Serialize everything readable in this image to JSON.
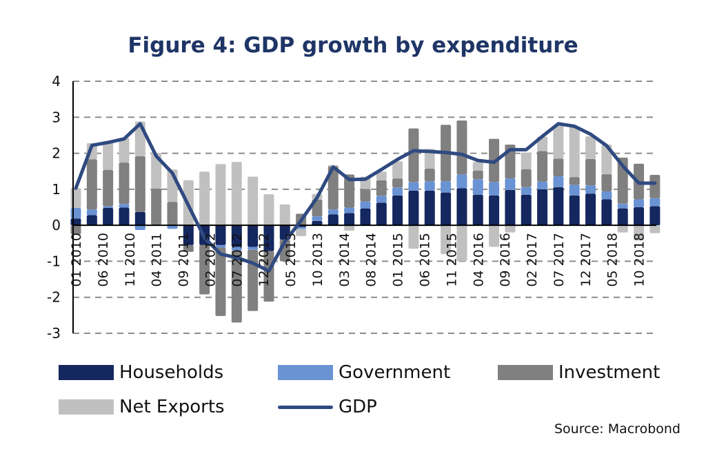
{
  "chart_data": {
    "type": "bar",
    "stacked": true,
    "title": "Figure 4: GDP growth by expenditure",
    "source": "Source: Macrobond",
    "xlabel": "",
    "ylabel": "",
    "ylim": [
      -3,
      4
    ],
    "yticks": [
      "4",
      "3",
      "2",
      "1",
      "0",
      "-1",
      "-2",
      "-3"
    ],
    "grid": true,
    "legend_placement": "bottom",
    "xtick_labels": [
      "01 2010",
      "06 2010",
      "11 2010",
      "04 2011",
      "09 2011",
      "02 2012",
      "07 2012",
      "12 2012",
      "05 2013",
      "10 2013",
      "03 2014",
      "08 2014",
      "01 2015",
      "06 2015",
      "11 2015",
      "04 2016",
      "09 2016",
      "02 2017",
      "07 2017",
      "12 2017",
      "05 2018",
      "10 2018"
    ],
    "x": [
      "01 2010",
      "04 2010",
      "07 2010",
      "10 2010",
      "01 2011",
      "04 2011",
      "07 2011",
      "10 2011",
      "01 2012",
      "04 2012",
      "07 2012",
      "10 2012",
      "01 2013",
      "04 2013",
      "07 2013",
      "10 2013",
      "01 2014",
      "04 2014",
      "07 2014",
      "10 2014",
      "01 2015",
      "04 2015",
      "07 2015",
      "10 2015",
      "01 2016",
      "04 2016",
      "07 2016",
      "10 2016",
      "01 2017",
      "04 2017",
      "07 2017",
      "10 2017",
      "01 2018",
      "04 2018",
      "07 2018",
      "10 2018",
      "01 2019"
    ],
    "series": [
      {
        "name": "Households",
        "type": "bar",
        "color": "#14275f",
        "values": [
          0.19,
          0.28,
          0.48,
          0.49,
          0.37,
          0.02,
          0.0,
          -0.55,
          -0.55,
          -0.55,
          -0.6,
          -0.6,
          -0.72,
          -0.4,
          -0.05,
          0.12,
          0.3,
          0.34,
          0.47,
          0.63,
          0.83,
          0.96,
          0.96,
          0.91,
          1.03,
          0.85,
          0.83,
          0.98,
          0.85,
          1.0,
          1.06,
          0.83,
          0.88,
          0.72,
          0.47,
          0.5,
          0.53
        ]
      },
      {
        "name": "Government",
        "type": "bar",
        "color": "#6a93d4",
        "values": [
          0.29,
          0.16,
          0.05,
          0.1,
          -0.13,
          0.0,
          -0.1,
          0.0,
          0.0,
          -0.07,
          -0.1,
          -0.08,
          0.0,
          0.0,
          -0.05,
          0.13,
          0.14,
          0.15,
          0.19,
          0.19,
          0.22,
          0.24,
          0.26,
          0.31,
          0.38,
          0.43,
          0.37,
          0.32,
          0.21,
          0.21,
          0.3,
          0.29,
          0.23,
          0.22,
          0.13,
          0.22,
          0.22
        ]
      },
      {
        "name": "Investment",
        "type": "bar",
        "color": "#808080",
        "values": [
          -0.25,
          1.39,
          1.01,
          1.15,
          1.55,
          1.0,
          0.65,
          -0.19,
          -1.37,
          -1.9,
          -2.0,
          -1.7,
          -1.4,
          -0.6,
          0.32,
          0.46,
          1.2,
          0.92,
          0.35,
          0.43,
          0.25,
          1.49,
          0.35,
          1.57,
          1.5,
          0.24,
          1.2,
          0.94,
          0.5,
          0.85,
          0.49,
          0.22,
          0.73,
          0.48,
          1.28,
          0.99,
          0.65
        ]
      },
      {
        "name": "Net Exports",
        "type": "bar",
        "color": "#c0c0c0",
        "values": [
          0.55,
          0.45,
          0.77,
          0.69,
          0.96,
          0.99,
          0.9,
          1.25,
          1.49,
          1.7,
          1.76,
          1.35,
          0.86,
          0.58,
          -0.2,
          0.16,
          0.03,
          -0.15,
          0.34,
          0.24,
          0.48,
          -0.65,
          0.55,
          -0.8,
          -1.0,
          0.24,
          -0.6,
          -0.2,
          0.46,
          0.4,
          0.93,
          1.38,
          0.63,
          0.82,
          -0.2,
          -0.42,
          -0.22
        ]
      },
      {
        "name": "GDP",
        "type": "line",
        "color": "#2f4a80",
        "values": [
          1.03,
          2.22,
          2.3,
          2.4,
          2.82,
          1.92,
          1.45,
          0.55,
          -0.35,
          -0.8,
          -0.9,
          -1.05,
          -1.27,
          -0.45,
          0.13,
          0.77,
          1.62,
          1.27,
          1.28,
          1.55,
          1.83,
          2.07,
          2.05,
          2.02,
          1.97,
          1.8,
          1.75,
          2.1,
          2.1,
          2.47,
          2.82,
          2.75,
          2.53,
          2.21,
          1.65,
          1.17,
          1.17
        ]
      }
    ]
  }
}
